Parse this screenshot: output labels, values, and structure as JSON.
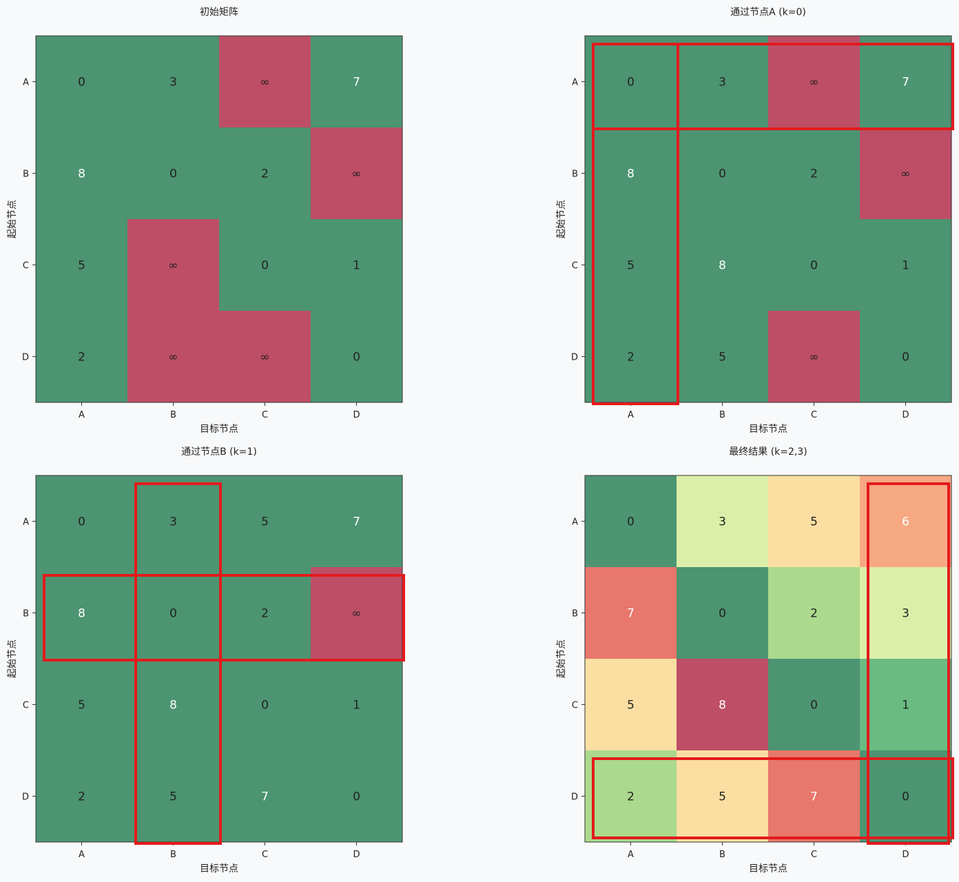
{
  "chart_data": [
    {
      "type": "heatmap",
      "title": "初始矩阵",
      "xlabel": "目标节点",
      "ylabel": "起始节点",
      "xticks": [
        "A",
        "B",
        "C",
        "D"
      ],
      "yticks": [
        "A",
        "B",
        "C",
        "D"
      ],
      "cells": [
        [
          "0",
          "3",
          "∞",
          "7"
        ],
        [
          "8",
          "0",
          "2",
          "∞"
        ],
        [
          "5",
          "∞",
          "0",
          "1"
        ],
        [
          "2",
          "∞",
          "∞",
          "0"
        ]
      ],
      "fills": [
        [
          "#4c9472",
          "#4c9472",
          "#bd4e66",
          "#4c9472"
        ],
        [
          "#4c9472",
          "#4c9472",
          "#4c9472",
          "#bd4e66"
        ],
        [
          "#4c9472",
          "#bd4e66",
          "#4c9472",
          "#4c9472"
        ],
        [
          "#4c9472",
          "#bd4e66",
          "#bd4e66",
          "#4c9472"
        ]
      ],
      "text_colors": [
        [
          "#222222",
          "#222222",
          "#222222",
          "#ffffff"
        ],
        [
          "#ffffff",
          "#222222",
          "#222222",
          "#222222"
        ],
        [
          "#222222",
          "#222222",
          "#222222",
          "#222222"
        ],
        [
          "#222222",
          "#222222",
          "#222222",
          "#222222"
        ]
      ],
      "highlights": []
    },
    {
      "type": "heatmap",
      "title": "通过节点A (k=0)",
      "xlabel": "目标节点",
      "ylabel": "起始节点",
      "xticks": [
        "A",
        "B",
        "C",
        "D"
      ],
      "yticks": [
        "A",
        "B",
        "C",
        "D"
      ],
      "cells": [
        [
          "0",
          "3",
          "∞",
          "7"
        ],
        [
          "8",
          "0",
          "2",
          "∞"
        ],
        [
          "5",
          "8",
          "0",
          "1"
        ],
        [
          "2",
          "5",
          "∞",
          "0"
        ]
      ],
      "fills": [
        [
          "#4c9472",
          "#4c9472",
          "#bd4e66",
          "#4c9472"
        ],
        [
          "#4c9472",
          "#4c9472",
          "#4c9472",
          "#bd4e66"
        ],
        [
          "#4c9472",
          "#4c9472",
          "#4c9472",
          "#4c9472"
        ],
        [
          "#4c9472",
          "#4c9472",
          "#bd4e66",
          "#4c9472"
        ]
      ],
      "text_colors": [
        [
          "#222222",
          "#222222",
          "#222222",
          "#ffffff"
        ],
        [
          "#ffffff",
          "#222222",
          "#222222",
          "#222222"
        ],
        [
          "#222222",
          "#ffffff",
          "#222222",
          "#222222"
        ],
        [
          "#222222",
          "#222222",
          "#222222",
          "#222222"
        ]
      ],
      "highlights": [
        {
          "kind": "row",
          "index": 0
        },
        {
          "kind": "column",
          "index": 0
        }
      ]
    },
    {
      "type": "heatmap",
      "title": "通过节点B (k=1)",
      "xlabel": "目标节点",
      "ylabel": "起始节点",
      "xticks": [
        "A",
        "B",
        "C",
        "D"
      ],
      "yticks": [
        "A",
        "B",
        "C",
        "D"
      ],
      "cells": [
        [
          "0",
          "3",
          "5",
          "7"
        ],
        [
          "8",
          "0",
          "2",
          "∞"
        ],
        [
          "5",
          "8",
          "0",
          "1"
        ],
        [
          "2",
          "5",
          "7",
          "0"
        ]
      ],
      "fills": [
        [
          "#4c9472",
          "#4c9472",
          "#4c9472",
          "#4c9472"
        ],
        [
          "#4c9472",
          "#4c9472",
          "#4c9472",
          "#bd4e66"
        ],
        [
          "#4c9472",
          "#4c9472",
          "#4c9472",
          "#4c9472"
        ],
        [
          "#4c9472",
          "#4c9472",
          "#4c9472",
          "#4c9472"
        ]
      ],
      "text_colors": [
        [
          "#222222",
          "#222222",
          "#222222",
          "#ffffff"
        ],
        [
          "#ffffff",
          "#222222",
          "#222222",
          "#222222"
        ],
        [
          "#222222",
          "#ffffff",
          "#222222",
          "#222222"
        ],
        [
          "#222222",
          "#222222",
          "#ffffff",
          "#222222"
        ]
      ],
      "highlights": [
        {
          "kind": "row",
          "index": 1
        },
        {
          "kind": "column",
          "index": 1
        }
      ]
    },
    {
      "type": "heatmap",
      "title": "最终结果 (k=2,3)",
      "xlabel": "目标节点",
      "ylabel": "起始节点",
      "xticks": [
        "A",
        "B",
        "C",
        "D"
      ],
      "yticks": [
        "A",
        "B",
        "C",
        "D"
      ],
      "cells": [
        [
          "0",
          "3",
          "5",
          "6"
        ],
        [
          "7",
          "0",
          "2",
          "3"
        ],
        [
          "5",
          "8",
          "0",
          "1"
        ],
        [
          "2",
          "5",
          "7",
          "0"
        ]
      ],
      "fills": [
        [
          "#4c9472",
          "#dcefa8",
          "#fbdea1",
          "#f6a882"
        ],
        [
          "#e8776c",
          "#4c9472",
          "#abd98d",
          "#dcefa8"
        ],
        [
          "#fbdea1",
          "#bd4e66",
          "#4c9472",
          "#6abb82"
        ],
        [
          "#abd98d",
          "#fbdea1",
          "#e8776c",
          "#4c9472"
        ]
      ],
      "text_colors": [
        [
          "#222222",
          "#222222",
          "#222222",
          "#ffffff"
        ],
        [
          "#ffffff",
          "#222222",
          "#222222",
          "#222222"
        ],
        [
          "#222222",
          "#ffffff",
          "#222222",
          "#222222"
        ],
        [
          "#222222",
          "#222222",
          "#ffffff",
          "#222222"
        ]
      ],
      "highlights": [
        {
          "kind": "row",
          "index": 3
        },
        {
          "kind": "column",
          "index": 3
        }
      ]
    }
  ]
}
